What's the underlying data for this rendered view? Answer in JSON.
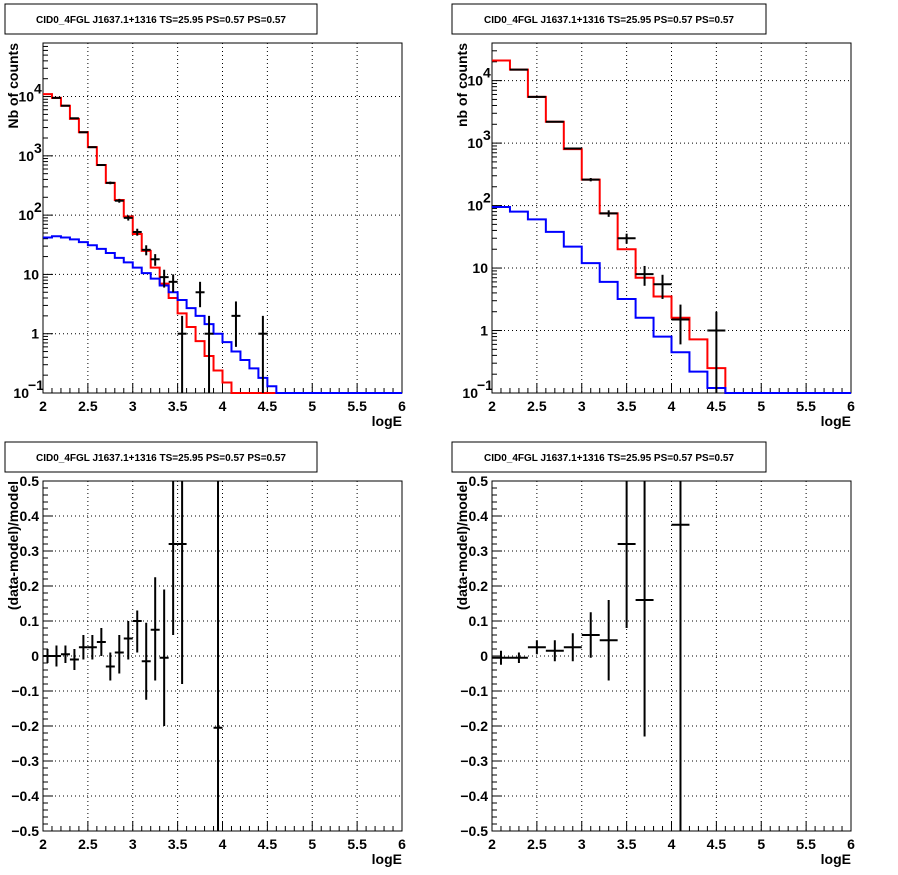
{
  "chart_data": [
    {
      "type": "line",
      "title": "CID0_4FGL J1637.1+1316 TS=25.95 PS=0.57 PS=0.57",
      "xlabel": "logE",
      "ylabel": "Nb of counts",
      "xlim": [
        2,
        6
      ],
      "ylim": [
        0.1,
        80000
      ],
      "yscale": "log",
      "grid": true,
      "x_ticks": [
        "2",
        "2.5",
        "3",
        "3.5",
        "4",
        "4.5",
        "5",
        "5.5",
        "6"
      ],
      "y_ticks": [
        {
          "v": 0.1,
          "t": "10"
        },
        {
          "v": 1,
          "t": "1"
        },
        {
          "v": 10,
          "t": "10"
        },
        {
          "v": 100,
          "t": "10"
        },
        {
          "v": 1000,
          "t": "10"
        },
        {
          "v": 10000,
          "t": "10"
        }
      ],
      "bin_width": 0.1,
      "bin_edges_start": 2.0,
      "series": [
        {
          "color": "#ff0000",
          "style": "step",
          "values": [
            11000,
            9500,
            7000,
            4200,
            2500,
            1400,
            700,
            350,
            180,
            95,
            48,
            25,
            13,
            7,
            4,
            2.2,
            1.3,
            0.75,
            0.42,
            0.24,
            0.15,
            0.1,
            0.1,
            0.1,
            0.1,
            0.1,
            0.1,
            0.1,
            0.1,
            0.1,
            0.1,
            0.1,
            0.1,
            0.1,
            0.1,
            0.1,
            0.1,
            0.1,
            0.1,
            0.1
          ]
        },
        {
          "color": "#0000ff",
          "style": "step",
          "values": [
            42,
            44,
            42,
            39,
            35,
            31,
            27,
            23,
            19,
            16,
            13,
            10.5,
            8.5,
            6.5,
            5,
            3.7,
            2.7,
            2,
            1.45,
            1,
            0.72,
            0.5,
            0.36,
            0.26,
            0.18,
            0.13,
            0.1,
            0.1,
            0.1,
            0.1,
            0.1,
            0.1,
            0.1,
            0.1,
            0.1,
            0.1,
            0.1,
            0.1,
            0.1,
            0.1
          ]
        }
      ],
      "points": [
        {
          "x": 2.15,
          "y": 9500,
          "lo": 9400,
          "hi": 9600
        },
        {
          "x": 2.25,
          "y": 7000,
          "lo": 6900,
          "hi": 7100
        },
        {
          "x": 2.35,
          "y": 4300,
          "lo": 4240,
          "hi": 4360
        },
        {
          "x": 2.45,
          "y": 2500,
          "lo": 2450,
          "hi": 2550
        },
        {
          "x": 2.55,
          "y": 1400,
          "lo": 1360,
          "hi": 1440
        },
        {
          "x": 2.65,
          "y": 700,
          "lo": 675,
          "hi": 725
        },
        {
          "x": 2.75,
          "y": 350,
          "lo": 332,
          "hi": 368
        },
        {
          "x": 2.85,
          "y": 175,
          "lo": 162,
          "hi": 188
        },
        {
          "x": 2.95,
          "y": 90,
          "lo": 81,
          "hi": 99
        },
        {
          "x": 3.05,
          "y": 52,
          "lo": 45,
          "hi": 59
        },
        {
          "x": 3.15,
          "y": 26,
          "lo": 21,
          "hi": 31
        },
        {
          "x": 3.25,
          "y": 18,
          "lo": 14,
          "hi": 22
        },
        {
          "x": 3.35,
          "y": 9,
          "lo": 6,
          "hi": 12
        },
        {
          "x": 3.45,
          "y": 7.5,
          "lo": 5,
          "hi": 10
        },
        {
          "x": 3.55,
          "y": 1,
          "lo": 0.1,
          "hi": 2
        },
        {
          "x": 3.75,
          "y": 5,
          "lo": 2.8,
          "hi": 7.5
        },
        {
          "x": 3.85,
          "y": 1,
          "lo": 0.1,
          "hi": 2
        },
        {
          "x": 4.15,
          "y": 2,
          "lo": 0.6,
          "hi": 3.5
        },
        {
          "x": 4.45,
          "y": 1,
          "lo": 0.1,
          "hi": 2
        }
      ]
    },
    {
      "type": "line",
      "title": "CID0_4FGL J1637.1+1316 TS=25.95 PS=0.57 PS=0.57",
      "xlabel": "logE",
      "ylabel": "nb of counts",
      "xlim": [
        2,
        6
      ],
      "ylim": [
        0.1,
        40000
      ],
      "yscale": "log",
      "grid": true,
      "x_ticks": [
        "2",
        "2.5",
        "3",
        "3.5",
        "4",
        "4.5",
        "5",
        "5.5",
        "6"
      ],
      "y_ticks": [
        {
          "v": 0.1,
          "t": "10"
        },
        {
          "v": 1,
          "t": "1"
        },
        {
          "v": 10,
          "t": "10"
        },
        {
          "v": 100,
          "t": "10"
        },
        {
          "v": 1000,
          "t": "10"
        },
        {
          "v": 10000,
          "t": "10"
        }
      ],
      "bin_width": 0.2,
      "bin_edges_start": 2.0,
      "series": [
        {
          "color": "#ff0000",
          "style": "step",
          "values": [
            21000,
            15000,
            5500,
            2200,
            800,
            260,
            75,
            20,
            7,
            3.5,
            1.6,
            0.72,
            0.25,
            0.1,
            0.1,
            0.1,
            0.1,
            0.1,
            0.1,
            0.1
          ]
        },
        {
          "color": "#0000ff",
          "style": "step",
          "values": [
            95,
            80,
            60,
            38,
            22,
            12,
            6,
            3.2,
            1.6,
            0.8,
            0.45,
            0.22,
            0.12,
            0.1,
            0.1,
            0.1,
            0.1,
            0.1,
            0.1,
            0.1
          ]
        }
      ],
      "points": [
        {
          "x": 2.3,
          "y": 15000,
          "lo": 14880,
          "hi": 15120
        },
        {
          "x": 2.5,
          "y": 5500,
          "lo": 5430,
          "hi": 5570
        },
        {
          "x": 2.7,
          "y": 2200,
          "lo": 2150,
          "hi": 2250
        },
        {
          "x": 2.9,
          "y": 820,
          "lo": 790,
          "hi": 850
        },
        {
          "x": 3.1,
          "y": 260,
          "lo": 244,
          "hi": 276
        },
        {
          "x": 3.3,
          "y": 75,
          "lo": 66,
          "hi": 84
        },
        {
          "x": 3.5,
          "y": 30,
          "lo": 24.5,
          "hi": 35.5
        },
        {
          "x": 3.7,
          "y": 8,
          "lo": 5.2,
          "hi": 10.8
        },
        {
          "x": 3.9,
          "y": 5.5,
          "lo": 3.2,
          "hi": 7.8
        },
        {
          "x": 4.1,
          "y": 1.5,
          "lo": 0.6,
          "hi": 2.6
        },
        {
          "x": 4.5,
          "y": 1,
          "lo": 0.1,
          "hi": 2
        }
      ]
    },
    {
      "type": "scatter",
      "title": "CID0_4FGL J1637.1+1316 TS=25.95 PS=0.57 PS=0.57",
      "xlabel": "logE",
      "ylabel": "(data-model)/model",
      "xlim": [
        2,
        6
      ],
      "ylim": [
        -0.5,
        0.5
      ],
      "yscale": "linear",
      "grid": true,
      "x_ticks": [
        "2",
        "2.5",
        "3",
        "3.5",
        "4",
        "4.5",
        "5",
        "5.5",
        "6"
      ],
      "y_ticks": [
        {
          "v": -0.5,
          "t": "−0.5"
        },
        {
          "v": -0.4,
          "t": "−0.4"
        },
        {
          "v": -0.3,
          "t": "−0.3"
        },
        {
          "v": -0.2,
          "t": "−0.2"
        },
        {
          "v": -0.1,
          "t": "−0.1"
        },
        {
          "v": 0,
          "t": "0"
        },
        {
          "v": 0.1,
          "t": "0.1"
        },
        {
          "v": 0.2,
          "t": "0.2"
        },
        {
          "v": 0.3,
          "t": "0.3"
        },
        {
          "v": 0.4,
          "t": "0.4"
        },
        {
          "v": 0.5,
          "t": "0.5"
        }
      ],
      "xerr": 0.05,
      "points": [
        {
          "x": 2.05,
          "y": 0.0,
          "lo": -0.02,
          "hi": 0.02
        },
        {
          "x": 2.15,
          "y": 0.0,
          "lo": -0.03,
          "hi": 0.03
        },
        {
          "x": 2.25,
          "y": 0.005,
          "lo": -0.02,
          "hi": 0.03
        },
        {
          "x": 2.35,
          "y": -0.01,
          "lo": -0.04,
          "hi": 0.02
        },
        {
          "x": 2.45,
          "y": 0.025,
          "lo": -0.01,
          "hi": 0.06
        },
        {
          "x": 2.55,
          "y": 0.025,
          "lo": -0.01,
          "hi": 0.06
        },
        {
          "x": 2.65,
          "y": 0.04,
          "lo": 0.0,
          "hi": 0.08
        },
        {
          "x": 2.75,
          "y": -0.03,
          "lo": -0.07,
          "hi": 0.01
        },
        {
          "x": 2.85,
          "y": 0.01,
          "lo": -0.05,
          "hi": 0.06
        },
        {
          "x": 2.95,
          "y": 0.05,
          "lo": -0.01,
          "hi": 0.1
        },
        {
          "x": 3.05,
          "y": 0.1,
          "lo": 0.01,
          "hi": 0.13
        },
        {
          "x": 3.15,
          "y": -0.015,
          "lo": -0.125,
          "hi": 0.095
        },
        {
          "x": 3.25,
          "y": 0.075,
          "lo": -0.07,
          "hi": 0.225
        },
        {
          "x": 3.35,
          "y": -0.005,
          "lo": -0.2,
          "hi": 0.19
        },
        {
          "x": 3.45,
          "y": 0.32,
          "lo": 0.06,
          "hi": 0.5
        },
        {
          "x": 3.55,
          "y": 0.32,
          "lo": -0.08,
          "hi": 0.5
        },
        {
          "x": 3.95,
          "y": -0.205,
          "lo": -0.5,
          "hi": 0.5
        }
      ]
    },
    {
      "type": "scatter",
      "title": "CID0_4FGL J1637.1+1316 TS=25.95 PS=0.57 PS=0.57",
      "xlabel": "logE",
      "ylabel": "(data-model)/model",
      "xlim": [
        2,
        6
      ],
      "ylim": [
        -0.5,
        0.5
      ],
      "yscale": "linear",
      "grid": true,
      "x_ticks": [
        "2",
        "2.5",
        "3",
        "3.5",
        "4",
        "4.5",
        "5",
        "5.5",
        "6"
      ],
      "y_ticks": [
        {
          "v": -0.5,
          "t": "−0.5"
        },
        {
          "v": -0.4,
          "t": "−0.4"
        },
        {
          "v": -0.3,
          "t": "−0.3"
        },
        {
          "v": -0.2,
          "t": "−0.2"
        },
        {
          "v": -0.1,
          "t": "−0.1"
        },
        {
          "v": 0,
          "t": "0"
        },
        {
          "v": 0.1,
          "t": "0.1"
        },
        {
          "v": 0.2,
          "t": "0.2"
        },
        {
          "v": 0.3,
          "t": "0.3"
        },
        {
          "v": 0.4,
          "t": "0.4"
        },
        {
          "v": 0.5,
          "t": "0.5"
        }
      ],
      "xerr": 0.1,
      "points": [
        {
          "x": 2.1,
          "y": -0.005,
          "lo": -0.025,
          "hi": 0.015
        },
        {
          "x": 2.3,
          "y": -0.005,
          "lo": -0.02,
          "hi": 0.01
        },
        {
          "x": 2.5,
          "y": 0.025,
          "lo": 0.005,
          "hi": 0.045
        },
        {
          "x": 2.7,
          "y": 0.015,
          "lo": -0.015,
          "hi": 0.045
        },
        {
          "x": 2.9,
          "y": 0.025,
          "lo": -0.015,
          "hi": 0.065
        },
        {
          "x": 3.1,
          "y": 0.06,
          "lo": -0.005,
          "hi": 0.125
        },
        {
          "x": 3.3,
          "y": 0.045,
          "lo": -0.07,
          "hi": 0.16
        },
        {
          "x": 3.5,
          "y": 0.32,
          "lo": 0.08,
          "hi": 0.5
        },
        {
          "x": 3.7,
          "y": 0.16,
          "lo": -0.23,
          "hi": 0.5
        },
        {
          "x": 4.1,
          "y": 0.375,
          "lo": -0.5,
          "hi": 0.5
        }
      ]
    }
  ]
}
